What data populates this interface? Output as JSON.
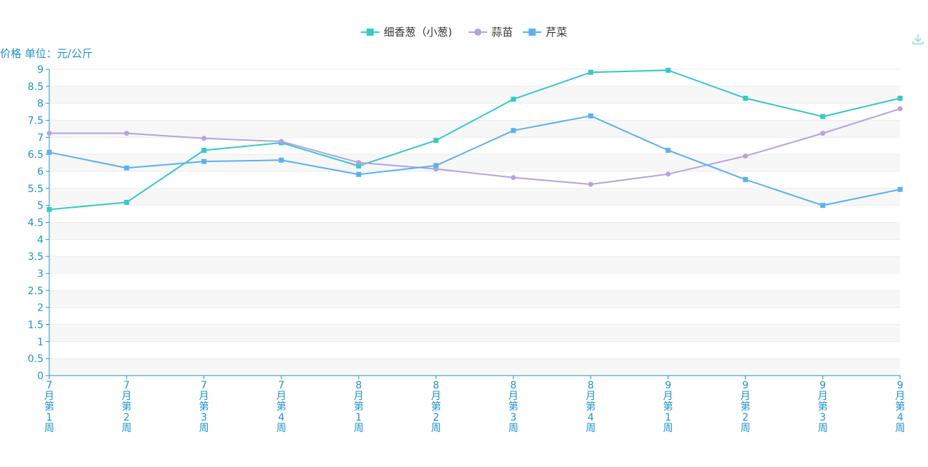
{
  "toolbar": {
    "download_icon": "download-icon"
  },
  "colors": {
    "axis": "#1f93c9",
    "band_odd": "#f7f7f7",
    "band_even": "#ffffff",
    "grid": "#ececec"
  },
  "chart_data": {
    "type": "line",
    "ylabel": "价格 单位：元/公斤",
    "ylim": [
      0,
      9
    ],
    "y_ticks": [
      "0",
      "0.5",
      "1",
      "1.5",
      "2",
      "2.5",
      "3",
      "3.5",
      "4",
      "4.5",
      "5",
      "5.5",
      "6",
      "6.5",
      "7",
      "7.5",
      "8",
      "8.5",
      "9"
    ],
    "categories": [
      "7月第1周",
      "7月第2周",
      "7月第3周",
      "7月第4周",
      "8月第1周",
      "8月第2周",
      "8月第3周",
      "8月第4周",
      "9月第1周",
      "9月第2周",
      "9月第3周",
      "9月第4周"
    ],
    "legend_position": "top-center",
    "grid": true,
    "series": [
      {
        "name": "细香葱（小葱)",
        "color": "#36c9c6",
        "marker": "square",
        "values": [
          4.88,
          5.09,
          6.62,
          6.84,
          6.16,
          6.91,
          8.12,
          8.91,
          8.97,
          8.15,
          7.61,
          8.15
        ]
      },
      {
        "name": "蒜苗",
        "color": "#b6a2de",
        "marker": "circle",
        "values": [
          7.12,
          7.12,
          6.97,
          6.88,
          6.26,
          6.07,
          5.82,
          5.62,
          5.92,
          6.45,
          7.12,
          7.84
        ]
      },
      {
        "name": "芹菜",
        "color": "#5ab1ef",
        "marker": "square",
        "values": [
          6.56,
          6.1,
          6.29,
          6.33,
          5.91,
          6.17,
          7.2,
          7.63,
          6.62,
          5.76,
          5.0,
          5.47
        ]
      }
    ]
  }
}
